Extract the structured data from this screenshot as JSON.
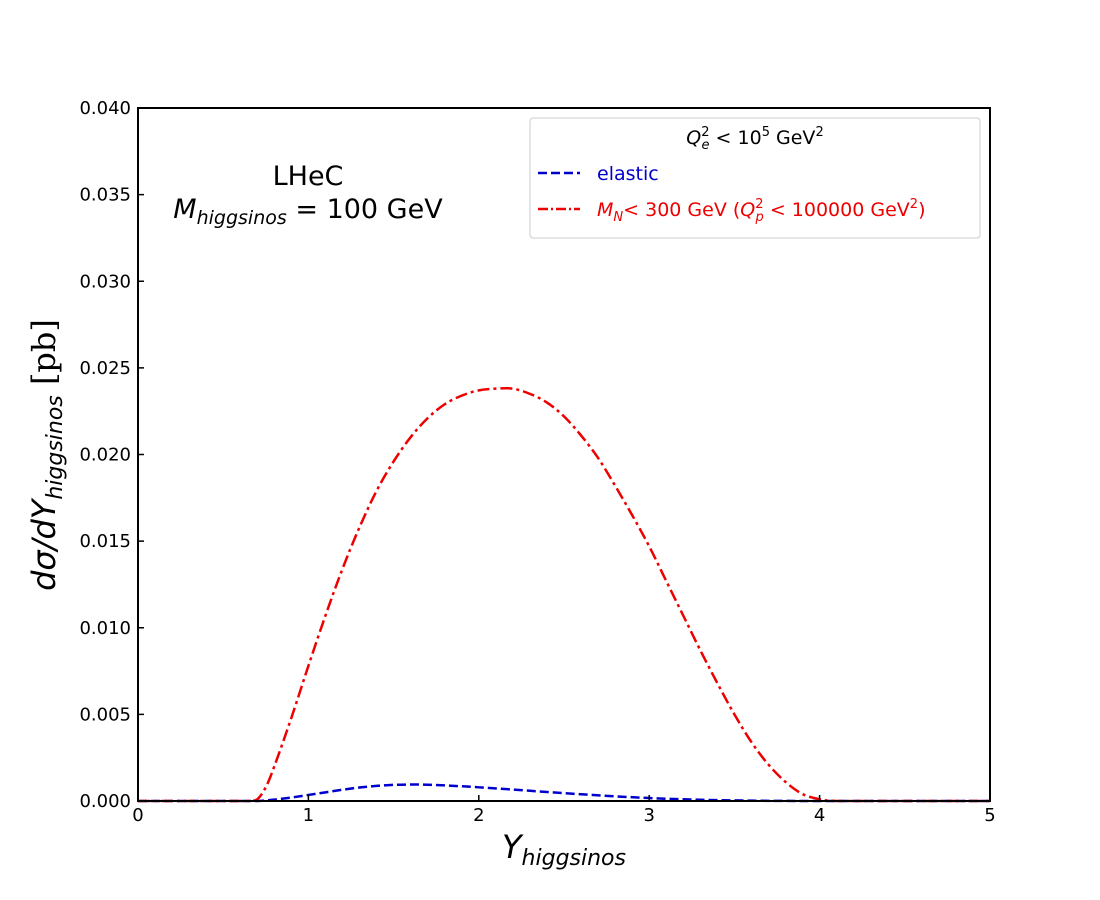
{
  "chart_data": {
    "type": "line",
    "xlabel": "Y",
    "xlabel_sub": "higgsinos",
    "ylabel": "dσ/dY",
    "ylabel_sub": "higgsinos",
    "ylabel_unit": " [pb]",
    "xlim": [
      0,
      5
    ],
    "ylim": [
      0,
      0.04
    ],
    "xticks": [
      "0",
      "1",
      "2",
      "3",
      "4",
      "5"
    ],
    "yticks": [
      "0.000",
      "0.005",
      "0.010",
      "0.015",
      "0.020",
      "0.025",
      "0.030",
      "0.035",
      "0.040"
    ],
    "grid": false,
    "legend_position": "top-right",
    "legend_title": {
      "Q": "Q",
      "sub": "e",
      "sup": "2",
      "rest": " <  10",
      "exp": "5",
      "unit": " GeV",
      "unit_sup": "2"
    },
    "annotation": {
      "line1": "LHeC",
      "line2_M": "M",
      "line2_sub": "higgsinos",
      "line2_rest": " = 100 GeV"
    },
    "series": [
      {
        "name": "elastic",
        "color": "#0000cc",
        "dash": "dashed",
        "x": [
          0,
          0.5,
          0.7,
          0.8,
          0.9,
          1.0,
          1.1,
          1.2,
          1.3,
          1.4,
          1.5,
          1.6,
          1.7,
          1.8,
          1.9,
          2.0,
          2.2,
          2.4,
          2.6,
          2.8,
          3.0,
          3.2,
          3.4,
          3.6,
          3.8,
          4.0,
          4.2,
          4.5,
          5.0
        ],
        "y": [
          0,
          0,
          0,
          8e-05,
          0.0002,
          0.00035,
          0.0005,
          0.00065,
          0.00078,
          0.00087,
          0.00093,
          0.00095,
          0.00094,
          0.0009,
          0.00085,
          0.00079,
          0.00066,
          0.00052,
          0.00039,
          0.00027,
          0.00017,
          0.0001,
          5e-05,
          2e-05,
          5e-06,
          0,
          0,
          0,
          0
        ]
      },
      {
        "name_M": "M",
        "name_sub": "N",
        "name_rest": "<  300 GeV (",
        "name_Q": "Q",
        "name_Q_sub": "p",
        "name_Q_sup": "2",
        "name_Q_rest": " <  100000 GeV",
        "name_unit_sup": "2",
        "name_close": ")",
        "color": "#ee0000",
        "dash": "dashdot",
        "x": [
          0,
          0.5,
          0.65,
          0.7,
          0.75,
          0.8,
          0.9,
          1.0,
          1.1,
          1.2,
          1.3,
          1.4,
          1.5,
          1.6,
          1.7,
          1.8,
          1.9,
          2.0,
          2.1,
          2.2,
          2.3,
          2.4,
          2.5,
          2.6,
          2.7,
          2.8,
          2.9,
          3.0,
          3.1,
          3.2,
          3.3,
          3.4,
          3.5,
          3.6,
          3.7,
          3.8,
          3.9,
          4.0,
          4.05,
          4.1,
          4.2,
          4.5,
          5.0
        ],
        "y": [
          0,
          0,
          0,
          0.0001,
          0.0008,
          0.002,
          0.0048,
          0.0078,
          0.0107,
          0.0134,
          0.0158,
          0.0179,
          0.0196,
          0.021,
          0.0221,
          0.0229,
          0.0234,
          0.0237,
          0.0238,
          0.0238,
          0.0235,
          0.023,
          0.0222,
          0.0211,
          0.0198,
          0.0182,
          0.0165,
          0.0147,
          0.0127,
          0.0107,
          0.0087,
          0.0068,
          0.005,
          0.0034,
          0.0021,
          0.0011,
          0.0004,
          0.0001,
          3e-05,
          0,
          0,
          0,
          0
        ]
      }
    ]
  }
}
